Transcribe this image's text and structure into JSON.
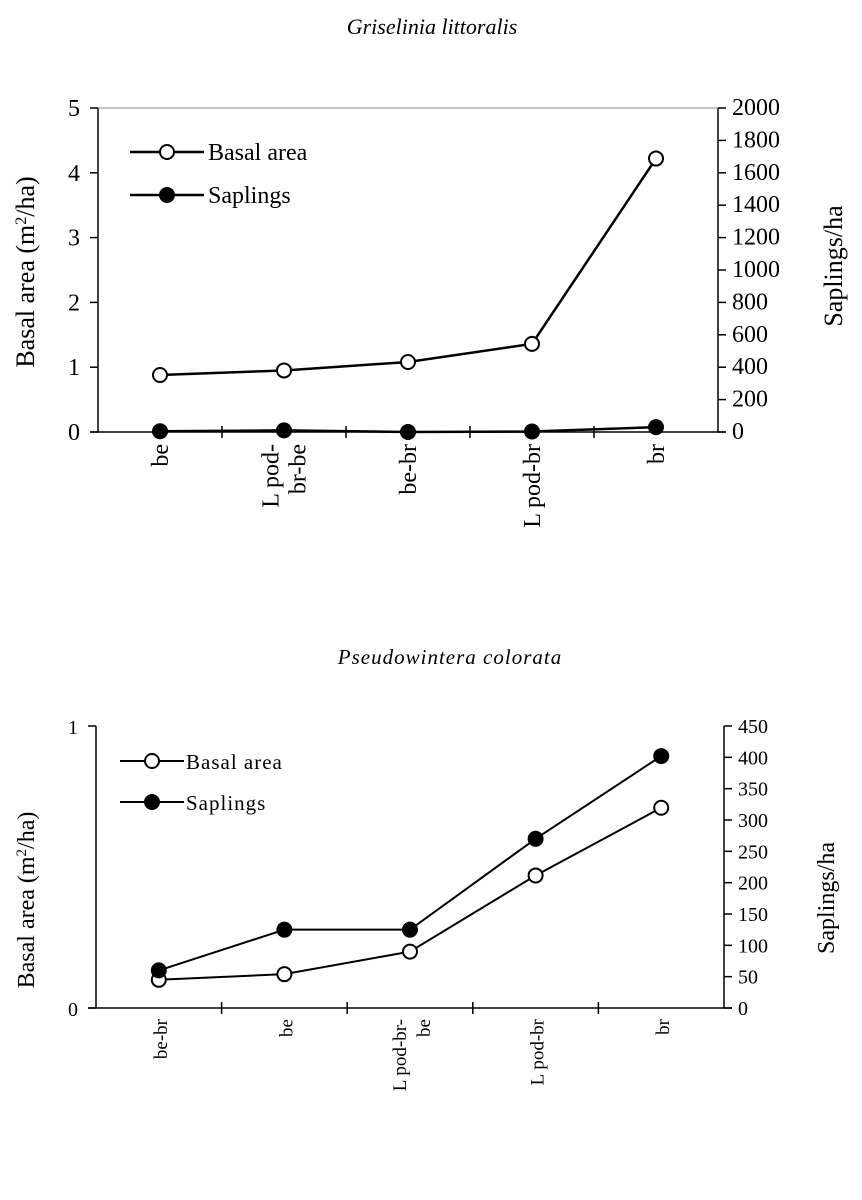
{
  "chart_data": [
    {
      "type": "line",
      "title": "Griselinia littoralis",
      "categories": [
        [
          "be"
        ],
        [
          "L pod-",
          "br-be"
        ],
        [
          "be-br"
        ],
        [
          "L pod-br"
        ],
        [
          "br"
        ]
      ],
      "ylabel": "Basal area (m²/ha)",
      "ylabel_main": "Basal area (m",
      "ylabel_sup": "2",
      "ylabel_tail": "/ha)",
      "y2label": "Saplings/ha",
      "ylim": [
        0,
        5
      ],
      "y2lim": [
        0,
        2000
      ],
      "yticks": [
        0,
        1,
        2,
        3,
        4,
        5
      ],
      "y2ticks": [
        0,
        200,
        400,
        600,
        800,
        1000,
        1200,
        1400,
        1600,
        1800,
        2000
      ],
      "legend_position": "top-left",
      "series": [
        {
          "name": "Basal area",
          "axis": "left",
          "marker": "open-circle",
          "values": [
            0.88,
            0.95,
            1.08,
            1.36,
            4.22
          ]
        },
        {
          "name": "Saplings",
          "axis": "right",
          "marker": "filled-circle",
          "values": [
            5,
            10,
            0,
            3,
            30
          ]
        }
      ]
    },
    {
      "type": "line",
      "title": "Pseudowintera colorata",
      "categories": [
        [
          "be-br"
        ],
        [
          "be"
        ],
        [
          "L pod-br-",
          "be"
        ],
        [
          "L pod-br"
        ],
        [
          "br"
        ]
      ],
      "ylabel": "Basal area (m²/ha)",
      "ylabel_main": "Basal area (m",
      "ylabel_sup": "2",
      "ylabel_tail": "/ha)",
      "y2label": "Saplings/ha",
      "ylim": [
        0,
        1
      ],
      "y2lim": [
        0,
        450
      ],
      "yticks": [
        0,
        1
      ],
      "y2ticks": [
        0,
        50,
        100,
        150,
        200,
        250,
        300,
        350,
        400,
        450
      ],
      "legend_position": "top-left",
      "series": [
        {
          "name": "Basal area",
          "axis": "left",
          "marker": "open-circle",
          "values": [
            0.1,
            0.12,
            0.2,
            0.47,
            0.71
          ]
        },
        {
          "name": "Saplings",
          "axis": "right",
          "marker": "filled-circle",
          "values": [
            60,
            125,
            125,
            270,
            402
          ]
        }
      ]
    }
  ]
}
